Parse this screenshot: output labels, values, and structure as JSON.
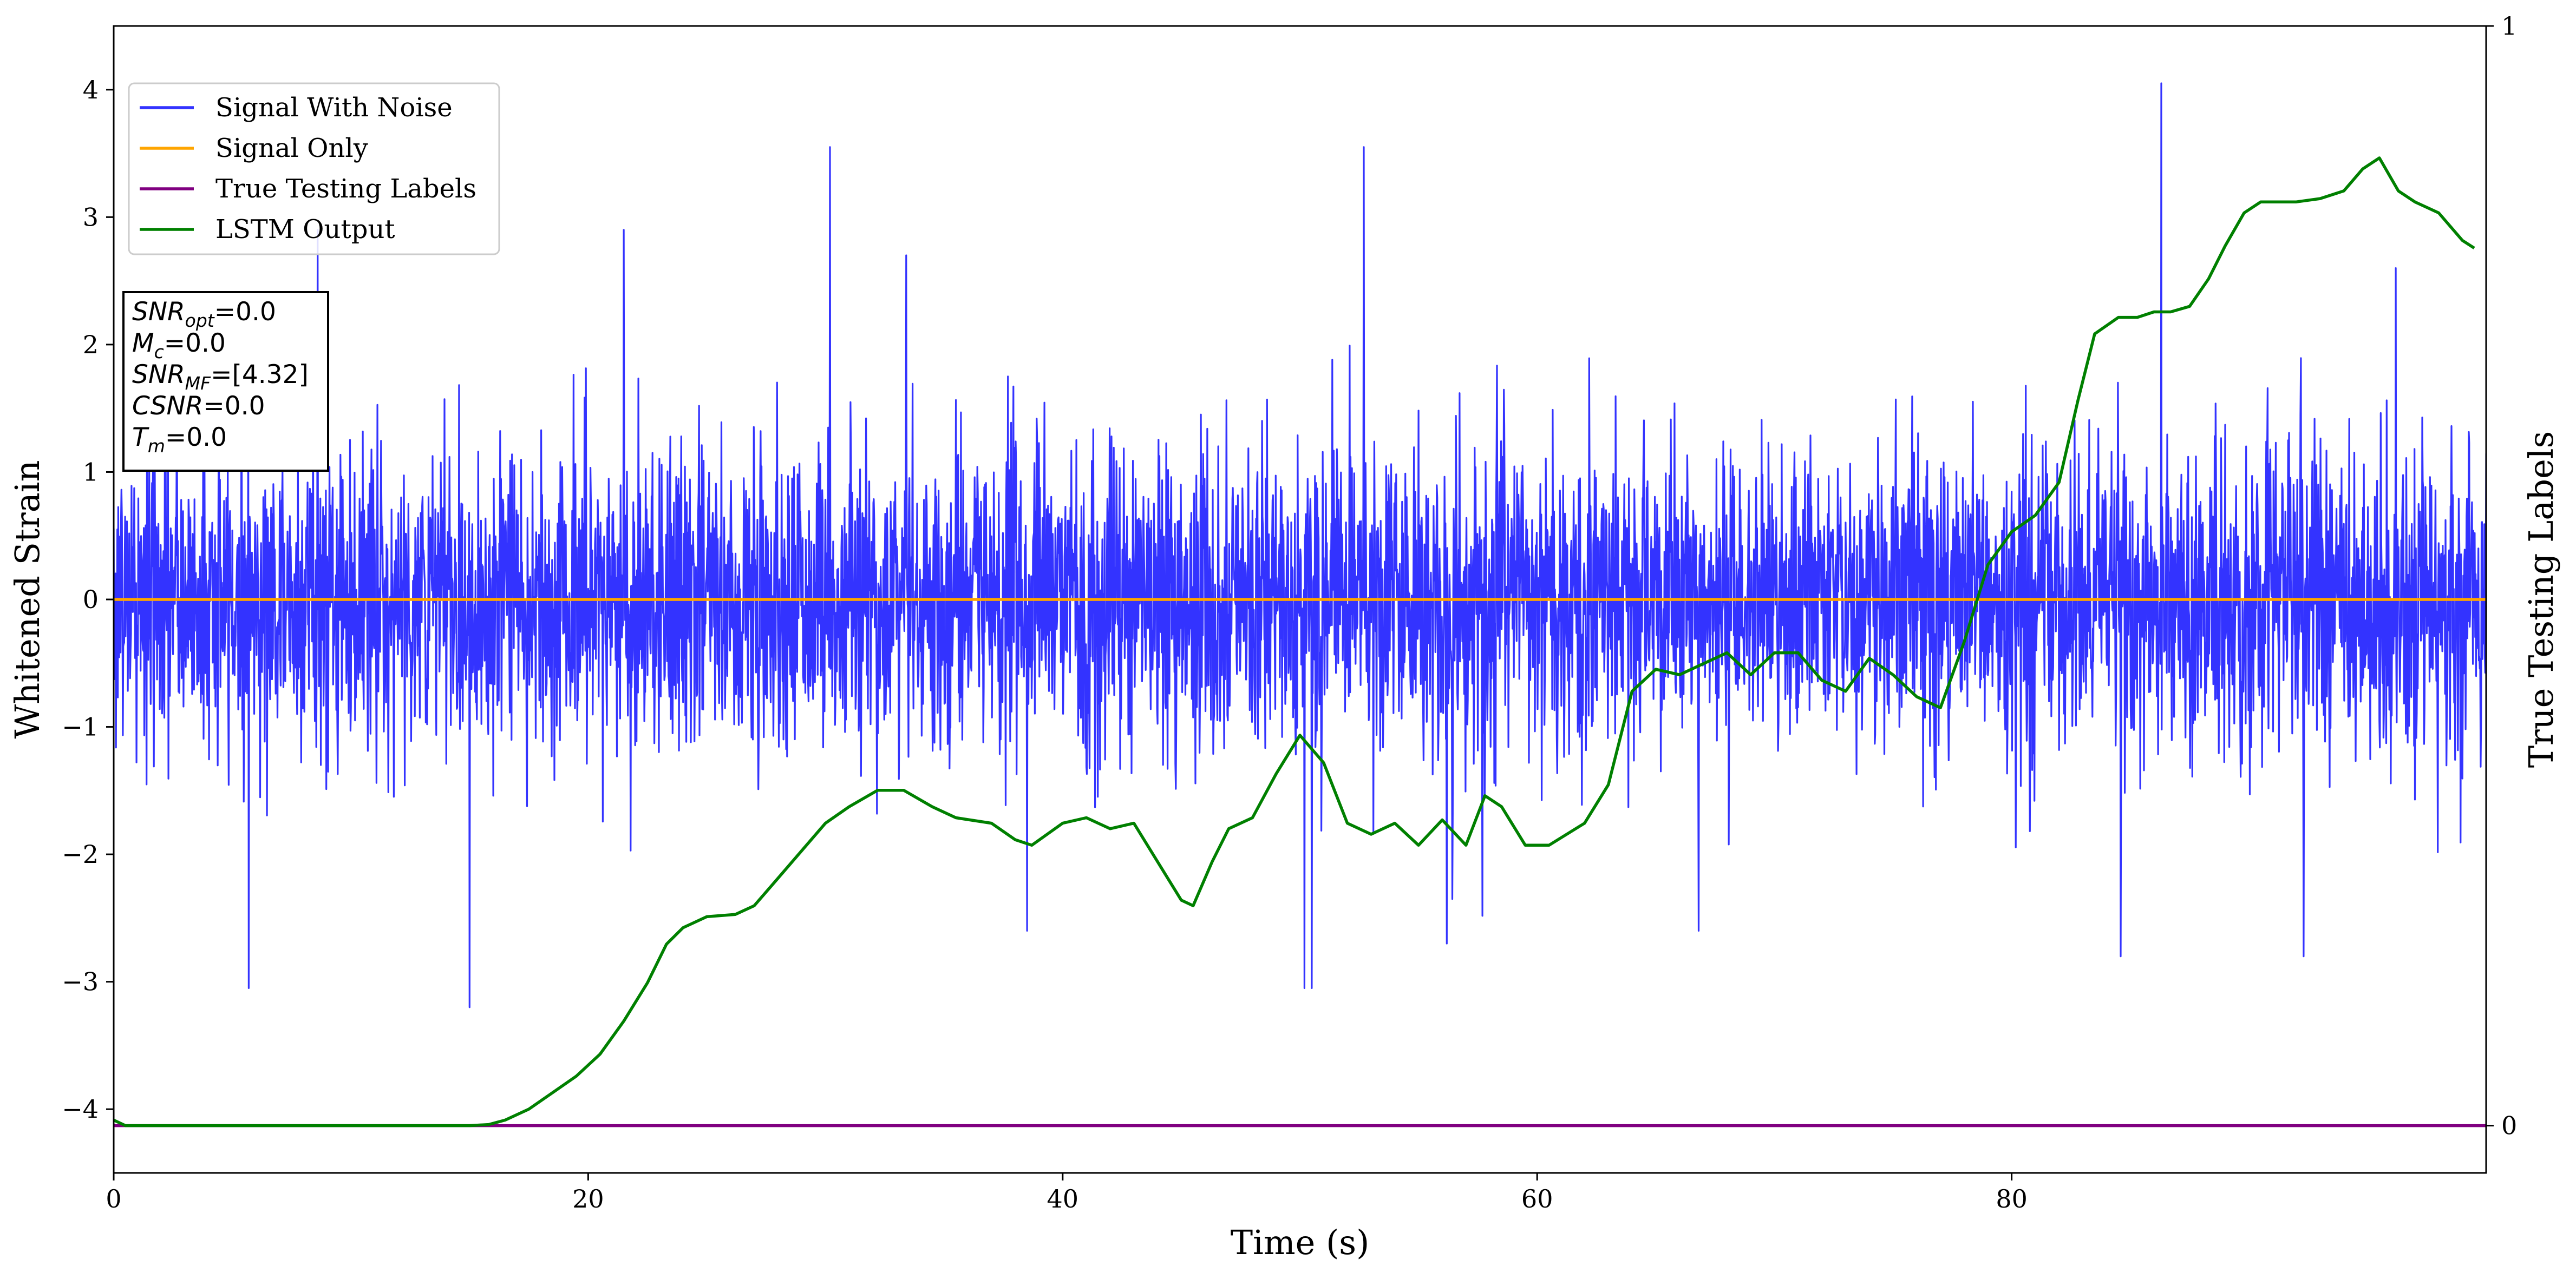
{
  "chart_data": {
    "type": "line",
    "title": "",
    "xlabel": "Time (s)",
    "ylabel": "Whitened Strain",
    "y2label": "True Testing Labels",
    "xlim": [
      0,
      100
    ],
    "ylim": [
      -4.5,
      4.5
    ],
    "y2lim": [
      -0.043,
      1.0
    ],
    "xticks": [
      0,
      20,
      40,
      60,
      80
    ],
    "yticks": [
      -4,
      -3,
      -2,
      -1,
      0,
      1,
      2,
      3,
      4
    ],
    "y2ticks": [
      0,
      1
    ],
    "grid": false,
    "legend_position": "upper-left",
    "series": [
      {
        "name": "Signal With Noise",
        "color": "#3333ff",
        "kind": "noise",
        "stats": {
          "mean": 0.0,
          "std": 0.6
        },
        "spikes": [
          [
            5.7,
            -3.05
          ],
          [
            8.6,
            2.9
          ],
          [
            15,
            -3.2
          ],
          [
            21.5,
            2.9
          ],
          [
            30.2,
            3.55
          ],
          [
            33.4,
            2.7
          ],
          [
            38.5,
            -2.6
          ],
          [
            50.2,
            -3.05
          ],
          [
            50.5,
            -3.05
          ],
          [
            52.7,
            3.55
          ],
          [
            56.2,
            -2.7
          ],
          [
            66.8,
            -2.6
          ],
          [
            86.3,
            4.05
          ],
          [
            84.6,
            -2.8
          ],
          [
            96.2,
            2.6
          ],
          [
            92.3,
            -2.8
          ]
        ]
      },
      {
        "name": "Signal Only",
        "color": "#ffa500",
        "x": [
          0,
          100
        ],
        "y": [
          0,
          0
        ]
      },
      {
        "name": "True Testing Labels",
        "color": "#800080",
        "axis": "right",
        "x": [
          0,
          100
        ],
        "y": [
          0,
          0
        ]
      },
      {
        "name": "LSTM Output",
        "color": "#008000",
        "axis": "right",
        "x": [
          0,
          0.5,
          2,
          8,
          15,
          15.8,
          16.5,
          17.5,
          18.5,
          19.5,
          20.5,
          21.5,
          22.5,
          23.3,
          24,
          25,
          26.2,
          27,
          28,
          29,
          30,
          31,
          32.2,
          33.3,
          34.5,
          35.5,
          37,
          38,
          38.7,
          40,
          41,
          42,
          43,
          44,
          45,
          45.5,
          46.3,
          47,
          48,
          49,
          50,
          51,
          52,
          53,
          54,
          55,
          56,
          57,
          57.8,
          58.5,
          59.5,
          60.5,
          62,
          63,
          64,
          65,
          66,
          67,
          68,
          69,
          70,
          71,
          72,
          73,
          74,
          75,
          76,
          77,
          78,
          79,
          80,
          81,
          82,
          82.8,
          83.5,
          84.5,
          85.3,
          86,
          86.7,
          87.5,
          88.3,
          89,
          89.8,
          90.5,
          91,
          92,
          93,
          94,
          94.8,
          95.5,
          96.3,
          97,
          98,
          99,
          99.5
        ],
        "y": [
          0.005,
          0.0,
          0.0,
          0.0,
          0.0,
          0.001,
          0.005,
          0.015,
          0.03,
          0.045,
          0.065,
          0.095,
          0.13,
          0.165,
          0.18,
          0.19,
          0.192,
          0.2,
          0.225,
          0.25,
          0.275,
          0.29,
          0.305,
          0.305,
          0.29,
          0.28,
          0.275,
          0.26,
          0.255,
          0.275,
          0.28,
          0.27,
          0.275,
          0.24,
          0.205,
          0.2,
          0.24,
          0.27,
          0.28,
          0.32,
          0.355,
          0.33,
          0.275,
          0.265,
          0.275,
          0.255,
          0.278,
          0.255,
          0.3,
          0.29,
          0.255,
          0.255,
          0.275,
          0.31,
          0.395,
          0.415,
          0.41,
          0.42,
          0.43,
          0.41,
          0.43,
          0.43,
          0.405,
          0.395,
          0.425,
          0.41,
          0.39,
          0.38,
          0.44,
          0.51,
          0.54,
          0.555,
          0.585,
          0.66,
          0.72,
          0.735,
          0.735,
          0.74,
          0.74,
          0.745,
          0.77,
          0.8,
          0.83,
          0.84,
          0.84,
          0.84,
          0.843,
          0.85,
          0.87,
          0.88,
          0.85,
          0.84,
          0.83,
          0.805,
          0.798
        ]
      }
    ],
    "annotation_lines": [
      {
        "var": "SNR",
        "sub": "opt",
        "rest": "=0.0"
      },
      {
        "var": "M",
        "sub": "c",
        "rest": "=0.0"
      },
      {
        "var": "SNR",
        "sub": "MF",
        "rest": "=[4.32]"
      },
      {
        "var": "CSNR",
        "sub": "",
        "rest": "=0.0"
      },
      {
        "var": "T",
        "sub": "m",
        "rest": "=0.0"
      }
    ]
  }
}
